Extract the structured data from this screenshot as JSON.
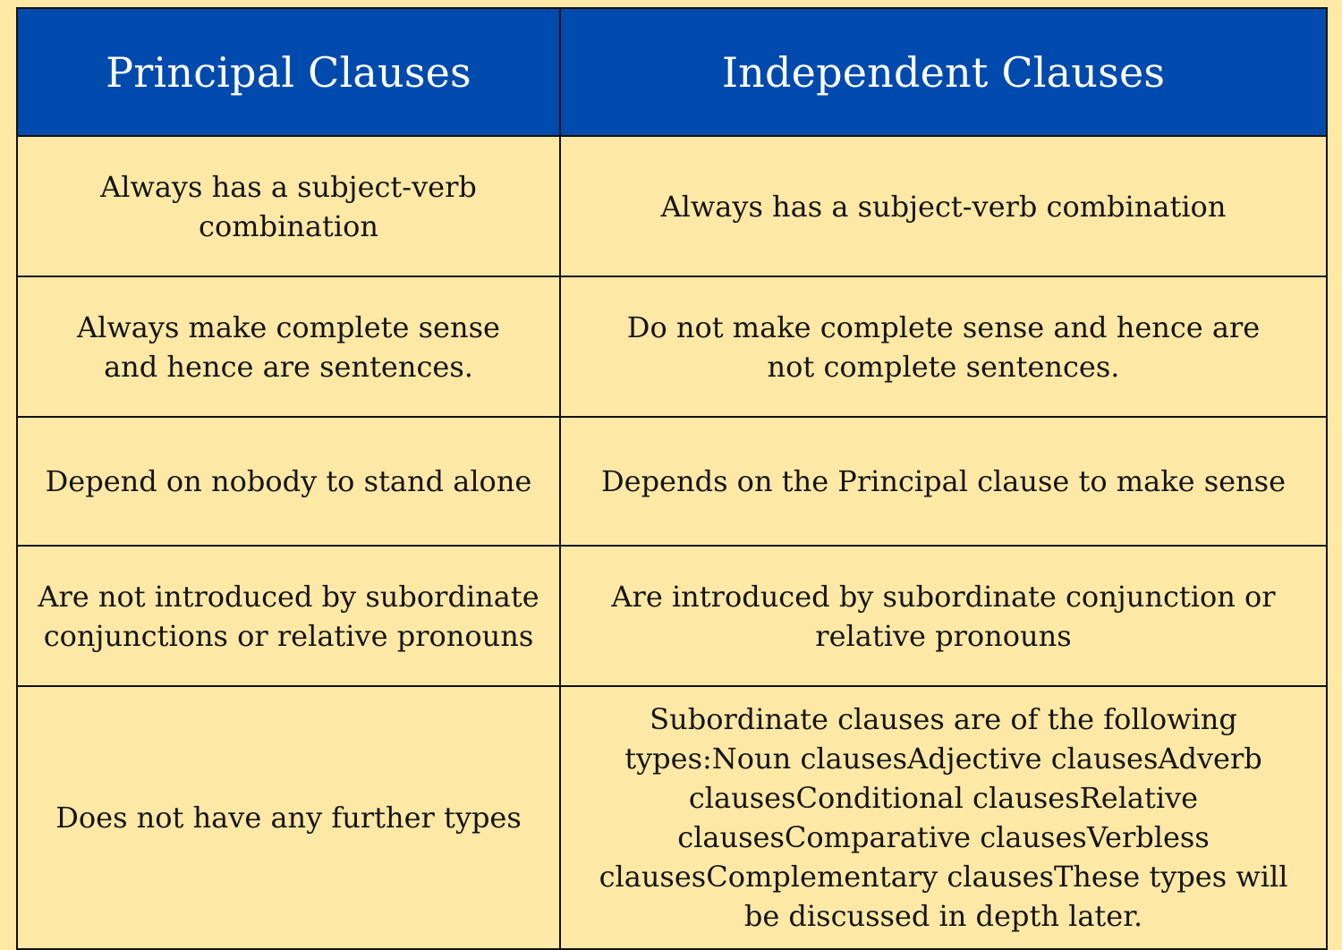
{
  "header": {
    "col1": "Principal Clauses",
    "col2": "Independent Clauses"
  },
  "rows": [
    {
      "principal": "Always has a subject-verb combination",
      "independent": "Always has a subject-verb combination"
    },
    {
      "principal": "Always make complete sense and hence are  sentences.",
      "independent": "Do not make complete sense and hence are not complete sentences."
    },
    {
      "principal": "Depend on nobody to stand alone",
      "independent": "Depends on the Principal clause to make sense"
    },
    {
      "principal": "Are not introduced by subordinate conjunctions or relative pronouns",
      "independent": "Are introduced by subordinate conjunction or relative pronouns"
    },
    {
      "principal": "Does not have any further types",
      "independent": "Subordinate clauses are of the following types:Noun clausesAdjective clausesAdverb clausesConditional clausesRelative clausesComparative clausesVerbless clausesComplementary clausesThese types will be discussed in depth later."
    }
  ],
  "colors": {
    "header_bg": "#004aad",
    "header_text": "#ffffff",
    "cell_bg": "#fde8a6",
    "border": "#111111"
  }
}
